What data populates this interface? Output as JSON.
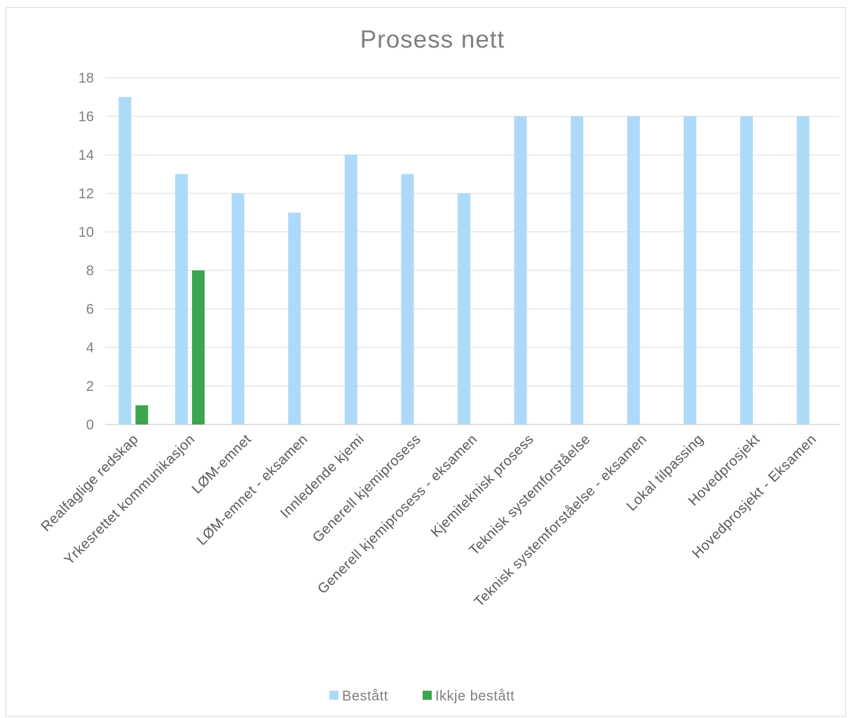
{
  "chart_data": {
    "type": "bar",
    "title": "Prosess nett",
    "categories": [
      "Realfaglige redskap",
      "Yrkesrettet kommunikasjon",
      "LØM-emnet",
      "LØM-emnet - eksamen",
      "Innledende kjemi",
      "Generell kjemiprosess",
      "Generell kjemiprosess - eksamen",
      "Kjemiteknisk prosess",
      "Teknisk systemforståelse",
      "Teknisk systemforståelse - eksamen",
      "Lokal tilpassing",
      "Hovedprosjekt",
      "Hovedprosjekt - Eksamen"
    ],
    "series": [
      {
        "name": "Bestått",
        "color": "#addaf9",
        "values": [
          17,
          13,
          12,
          11,
          14,
          13,
          12,
          16,
          16,
          16,
          16,
          16,
          16
        ]
      },
      {
        "name": "Ikkje bestått",
        "color": "#3ba54f",
        "values": [
          1,
          8,
          0,
          0,
          0,
          0,
          0,
          0,
          0,
          0,
          0,
          0,
          0
        ]
      }
    ],
    "ylim": [
      0,
      18
    ],
    "yticks": [
      "0",
      "2",
      "4",
      "6",
      "8",
      "10",
      "12",
      "14",
      "16",
      "18"
    ],
    "grid": true,
    "legend_position": "bottom"
  }
}
